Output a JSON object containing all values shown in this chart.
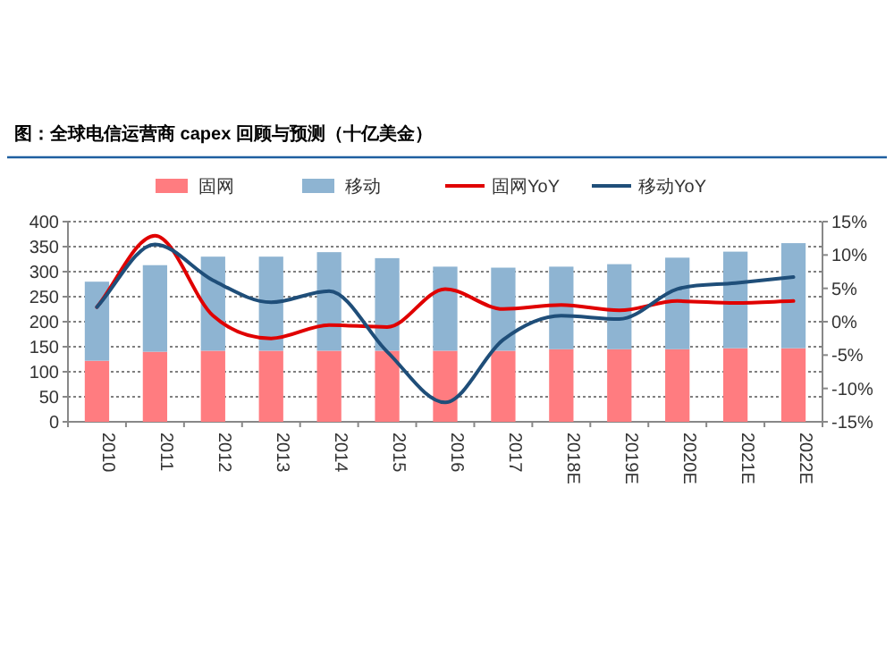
{
  "chart_data": {
    "type": "bar",
    "title": "图：全球电信运营商 capex 回顾与预测（十亿美金）",
    "categories": [
      "2010",
      "2011",
      "2012",
      "2013",
      "2014",
      "2015",
      "2016",
      "2017",
      "2018E",
      "2019E",
      "2020E",
      "2021E",
      "2022E"
    ],
    "stacked": true,
    "series": [
      {
        "name": "固网",
        "color": "#ff7c80",
        "values": [
          122,
          140,
          142,
          142,
          142,
          142,
          142,
          142,
          145,
          145,
          145,
          147,
          147
        ]
      },
      {
        "name": "移动",
        "color": "#8eb4d2",
        "values": [
          158,
          173,
          188,
          188,
          197,
          185,
          168,
          166,
          165,
          170,
          183,
          193,
          210
        ]
      },
      {
        "name": "固网YoY",
        "type": "line",
        "axis": "y2",
        "color": "#e00000",
        "values": [
          2.2,
          12.9,
          0.9,
          -2.5,
          -0.5,
          -0.8,
          4.9,
          1.9,
          2.5,
          1.7,
          3.1,
          2.8,
          3.1
        ]
      },
      {
        "name": "移动YoY",
        "type": "line",
        "axis": "y2",
        "color": "#1f4e79",
        "values": [
          2.2,
          11.6,
          6.2,
          2.9,
          4.6,
          -4.5,
          -12.1,
          -2.7,
          0.9,
          0.4,
          4.9,
          5.8,
          6.7
        ]
      }
    ],
    "ylim": [
      0,
      400
    ],
    "yticks": [
      0,
      50,
      100,
      150,
      200,
      250,
      300,
      350,
      400
    ],
    "y2lim": [
      -15,
      15
    ],
    "y2ticks": [
      {
        "value": -15,
        "label": "-15%"
      },
      {
        "value": -10,
        "label": "-10%"
      },
      {
        "value": -5,
        "label": "-5%"
      },
      {
        "value": 0,
        "label": "0%"
      },
      {
        "value": 5,
        "label": "5%"
      },
      {
        "value": 10,
        "label": "10%"
      },
      {
        "value": 15,
        "label": "15%"
      }
    ],
    "grid": "y",
    "legend": "top"
  }
}
